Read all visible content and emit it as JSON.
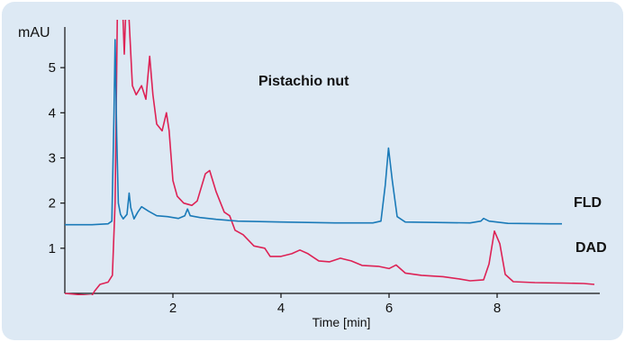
{
  "chart_data": {
    "type": "line",
    "title": "Pistachio nut",
    "xlabel": "Time [min]",
    "ylabel": "mAU",
    "xlim": [
      0,
      9.9
    ],
    "ylim": [
      0,
      5.9
    ],
    "xticks": [
      2,
      4,
      6,
      8
    ],
    "yticks": [
      1,
      2,
      3,
      4,
      5
    ],
    "grid": false,
    "background": "#dde9f4",
    "series": [
      {
        "name": "FLD",
        "color": "#1a7ab8",
        "points": [
          [
            0.0,
            1.52
          ],
          [
            0.5,
            1.52
          ],
          [
            0.8,
            1.54
          ],
          [
            0.87,
            1.6
          ],
          [
            0.91,
            4.0
          ],
          [
            0.93,
            5.62
          ],
          [
            0.96,
            3.5
          ],
          [
            0.99,
            2.0
          ],
          [
            1.03,
            1.75
          ],
          [
            1.08,
            1.65
          ],
          [
            1.15,
            1.75
          ],
          [
            1.19,
            2.22
          ],
          [
            1.22,
            1.9
          ],
          [
            1.28,
            1.65
          ],
          [
            1.35,
            1.8
          ],
          [
            1.42,
            1.92
          ],
          [
            1.55,
            1.82
          ],
          [
            1.7,
            1.72
          ],
          [
            1.9,
            1.7
          ],
          [
            2.1,
            1.66
          ],
          [
            2.22,
            1.72
          ],
          [
            2.27,
            1.87
          ],
          [
            2.32,
            1.72
          ],
          [
            2.5,
            1.68
          ],
          [
            2.8,
            1.64
          ],
          [
            3.2,
            1.6
          ],
          [
            4.0,
            1.58
          ],
          [
            5.0,
            1.56
          ],
          [
            5.7,
            1.56
          ],
          [
            5.85,
            1.6
          ],
          [
            5.93,
            2.4
          ],
          [
            5.99,
            3.22
          ],
          [
            6.06,
            2.5
          ],
          [
            6.15,
            1.7
          ],
          [
            6.3,
            1.58
          ],
          [
            7.5,
            1.56
          ],
          [
            7.7,
            1.6
          ],
          [
            7.75,
            1.66
          ],
          [
            7.85,
            1.6
          ],
          [
            8.2,
            1.55
          ],
          [
            9.0,
            1.54
          ],
          [
            9.2,
            1.54
          ]
        ]
      },
      {
        "name": "DAD",
        "color": "#dd2255",
        "points": [
          [
            0.0,
            0.0
          ],
          [
            0.5,
            -0.05
          ],
          [
            0.55,
            0.05
          ],
          [
            0.65,
            0.2
          ],
          [
            0.8,
            0.25
          ],
          [
            0.88,
            0.4
          ],
          [
            0.93,
            2.0
          ],
          [
            0.98,
            7.0
          ],
          [
            1.05,
            7.0
          ],
          [
            1.1,
            5.3
          ],
          [
            1.15,
            7.0
          ],
          [
            1.2,
            5.8
          ],
          [
            1.25,
            4.6
          ],
          [
            1.32,
            4.4
          ],
          [
            1.42,
            4.6
          ],
          [
            1.5,
            4.3
          ],
          [
            1.57,
            5.25
          ],
          [
            1.63,
            4.4
          ],
          [
            1.7,
            3.75
          ],
          [
            1.8,
            3.6
          ],
          [
            1.88,
            4.0
          ],
          [
            1.93,
            3.6
          ],
          [
            2.0,
            2.5
          ],
          [
            2.08,
            2.15
          ],
          [
            2.2,
            2.0
          ],
          [
            2.35,
            1.95
          ],
          [
            2.45,
            2.05
          ],
          [
            2.6,
            2.65
          ],
          [
            2.68,
            2.72
          ],
          [
            2.8,
            2.25
          ],
          [
            2.95,
            1.8
          ],
          [
            3.05,
            1.72
          ],
          [
            3.15,
            1.4
          ],
          [
            3.3,
            1.3
          ],
          [
            3.5,
            1.05
          ],
          [
            3.7,
            1.0
          ],
          [
            3.8,
            0.82
          ],
          [
            4.0,
            0.82
          ],
          [
            4.2,
            0.88
          ],
          [
            4.35,
            0.96
          ],
          [
            4.5,
            0.88
          ],
          [
            4.7,
            0.72
          ],
          [
            4.9,
            0.7
          ],
          [
            5.1,
            0.78
          ],
          [
            5.3,
            0.72
          ],
          [
            5.5,
            0.62
          ],
          [
            5.8,
            0.6
          ],
          [
            6.0,
            0.55
          ],
          [
            6.13,
            0.63
          ],
          [
            6.3,
            0.45
          ],
          [
            6.6,
            0.4
          ],
          [
            7.0,
            0.37
          ],
          [
            7.3,
            0.32
          ],
          [
            7.5,
            0.28
          ],
          [
            7.75,
            0.3
          ],
          [
            7.85,
            0.65
          ],
          [
            7.95,
            1.38
          ],
          [
            8.05,
            1.1
          ],
          [
            8.15,
            0.42
          ],
          [
            8.3,
            0.26
          ],
          [
            8.7,
            0.24
          ],
          [
            9.2,
            0.23
          ],
          [
            9.6,
            0.22
          ],
          [
            9.8,
            0.2
          ]
        ]
      }
    ]
  }
}
